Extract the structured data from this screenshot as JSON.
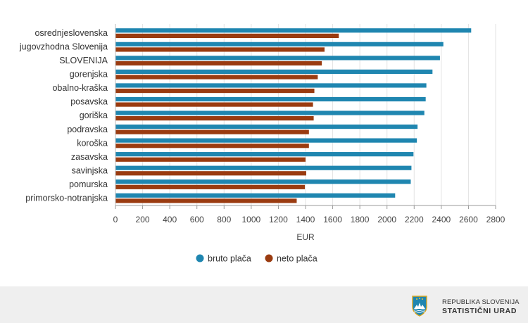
{
  "chart_data": {
    "type": "bar",
    "orientation": "horizontal",
    "categories": [
      "osrednjeslovenska",
      "jugovzhodna Slovenija",
      "SLOVENIJA",
      "gorenjska",
      "obalno-kraška",
      "posavska",
      "goriška",
      "podravska",
      "koroška",
      "zasavska",
      "savinjska",
      "pomurska",
      "primorsko-notranjska"
    ],
    "series": [
      {
        "name": "bruto plača",
        "color": "#1f86b0",
        "values": [
          2620,
          2415,
          2390,
          2335,
          2290,
          2285,
          2275,
          2225,
          2220,
          2195,
          2180,
          2175,
          2060
        ]
      },
      {
        "name": "neto plača",
        "color": "#9a3b10",
        "values": [
          1645,
          1540,
          1520,
          1490,
          1465,
          1455,
          1460,
          1425,
          1425,
          1400,
          1405,
          1395,
          1335
        ]
      }
    ],
    "xlabel": "EUR",
    "xlim": [
      0,
      2800
    ],
    "xticks": [
      "0",
      "200",
      "400",
      "600",
      "800",
      "1000",
      "1200",
      "1400",
      "1600",
      "1800",
      "2000",
      "2200",
      "2400",
      "2600",
      "2800"
    ],
    "grid": true,
    "legend_position": "bottom-center"
  },
  "footer": {
    "org_line1": "REPUBLIKA SLOVENIJA",
    "org_line2": "STATISTIČNI URAD"
  }
}
